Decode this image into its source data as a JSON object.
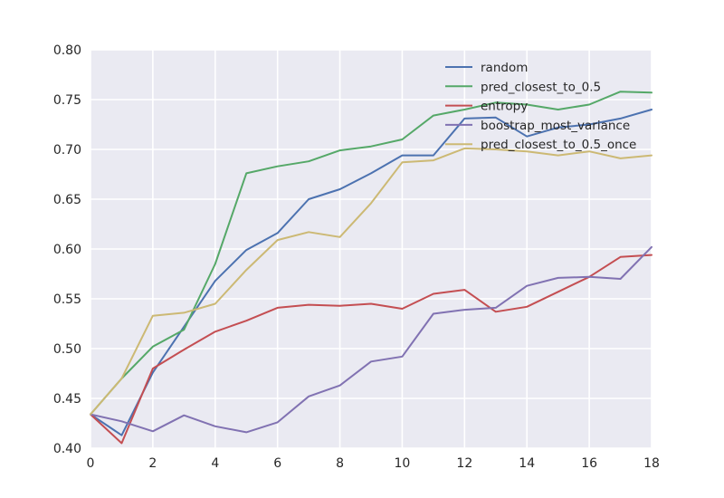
{
  "chart_data": {
    "type": "line",
    "title": "",
    "xlabel": "",
    "ylabel": "",
    "xlim": [
      0,
      18
    ],
    "ylim": [
      0.4,
      0.8
    ],
    "x": [
      0,
      1,
      2,
      3,
      4,
      5,
      6,
      7,
      8,
      9,
      10,
      11,
      12,
      13,
      14,
      15,
      16,
      17,
      18
    ],
    "xticks": [
      0,
      2,
      4,
      6,
      8,
      10,
      12,
      14,
      16,
      18
    ],
    "xtick_labels": [
      "0",
      "2",
      "4",
      "6",
      "8",
      "10",
      "12",
      "14",
      "16",
      "18"
    ],
    "yticks": [
      0.4,
      0.45,
      0.5,
      0.55,
      0.6,
      0.65,
      0.7,
      0.75,
      0.8
    ],
    "ytick_labels": [
      "0.40",
      "0.45",
      "0.50",
      "0.55",
      "0.60",
      "0.65",
      "0.70",
      "0.75",
      "0.80"
    ],
    "grid": true,
    "legend_position": "top-right",
    "series": [
      {
        "name": "random",
        "color": "#4c72b0",
        "values": [
          0.434,
          0.413,
          0.476,
          0.522,
          0.568,
          0.599,
          0.616,
          0.65,
          0.66,
          0.676,
          0.694,
          0.694,
          0.731,
          0.732,
          0.713,
          0.722,
          0.725,
          0.731,
          0.74
        ]
      },
      {
        "name": "pred_closest_to_0.5",
        "color": "#55a868",
        "values": [
          0.434,
          0.47,
          0.502,
          0.519,
          0.585,
          0.676,
          0.683,
          0.688,
          0.699,
          0.703,
          0.71,
          0.734,
          0.74,
          0.747,
          0.745,
          0.74,
          0.745,
          0.758,
          0.757
        ]
      },
      {
        "name": "entropy",
        "color": "#c44e52",
        "values": [
          0.434,
          0.405,
          0.48,
          0.499,
          0.517,
          0.528,
          0.541,
          0.544,
          0.543,
          0.545,
          0.54,
          0.555,
          0.559,
          0.537,
          0.542,
          0.557,
          0.572,
          0.592,
          0.594
        ]
      },
      {
        "name": "boostrap_most_variance",
        "color": "#8172b2",
        "values": [
          0.434,
          0.427,
          0.417,
          0.433,
          0.422,
          0.416,
          0.426,
          0.452,
          0.463,
          0.487,
          0.492,
          0.535,
          0.539,
          0.541,
          0.563,
          0.571,
          0.572,
          0.57,
          0.602
        ]
      },
      {
        "name": "pred_closest_to_0.5_once",
        "color": "#ccb974",
        "values": [
          0.434,
          0.47,
          0.533,
          0.536,
          0.545,
          0.579,
          0.609,
          0.617,
          0.612,
          0.646,
          0.687,
          0.689,
          0.701,
          0.7,
          0.698,
          0.694,
          0.698,
          0.691,
          0.694
        ]
      }
    ]
  }
}
